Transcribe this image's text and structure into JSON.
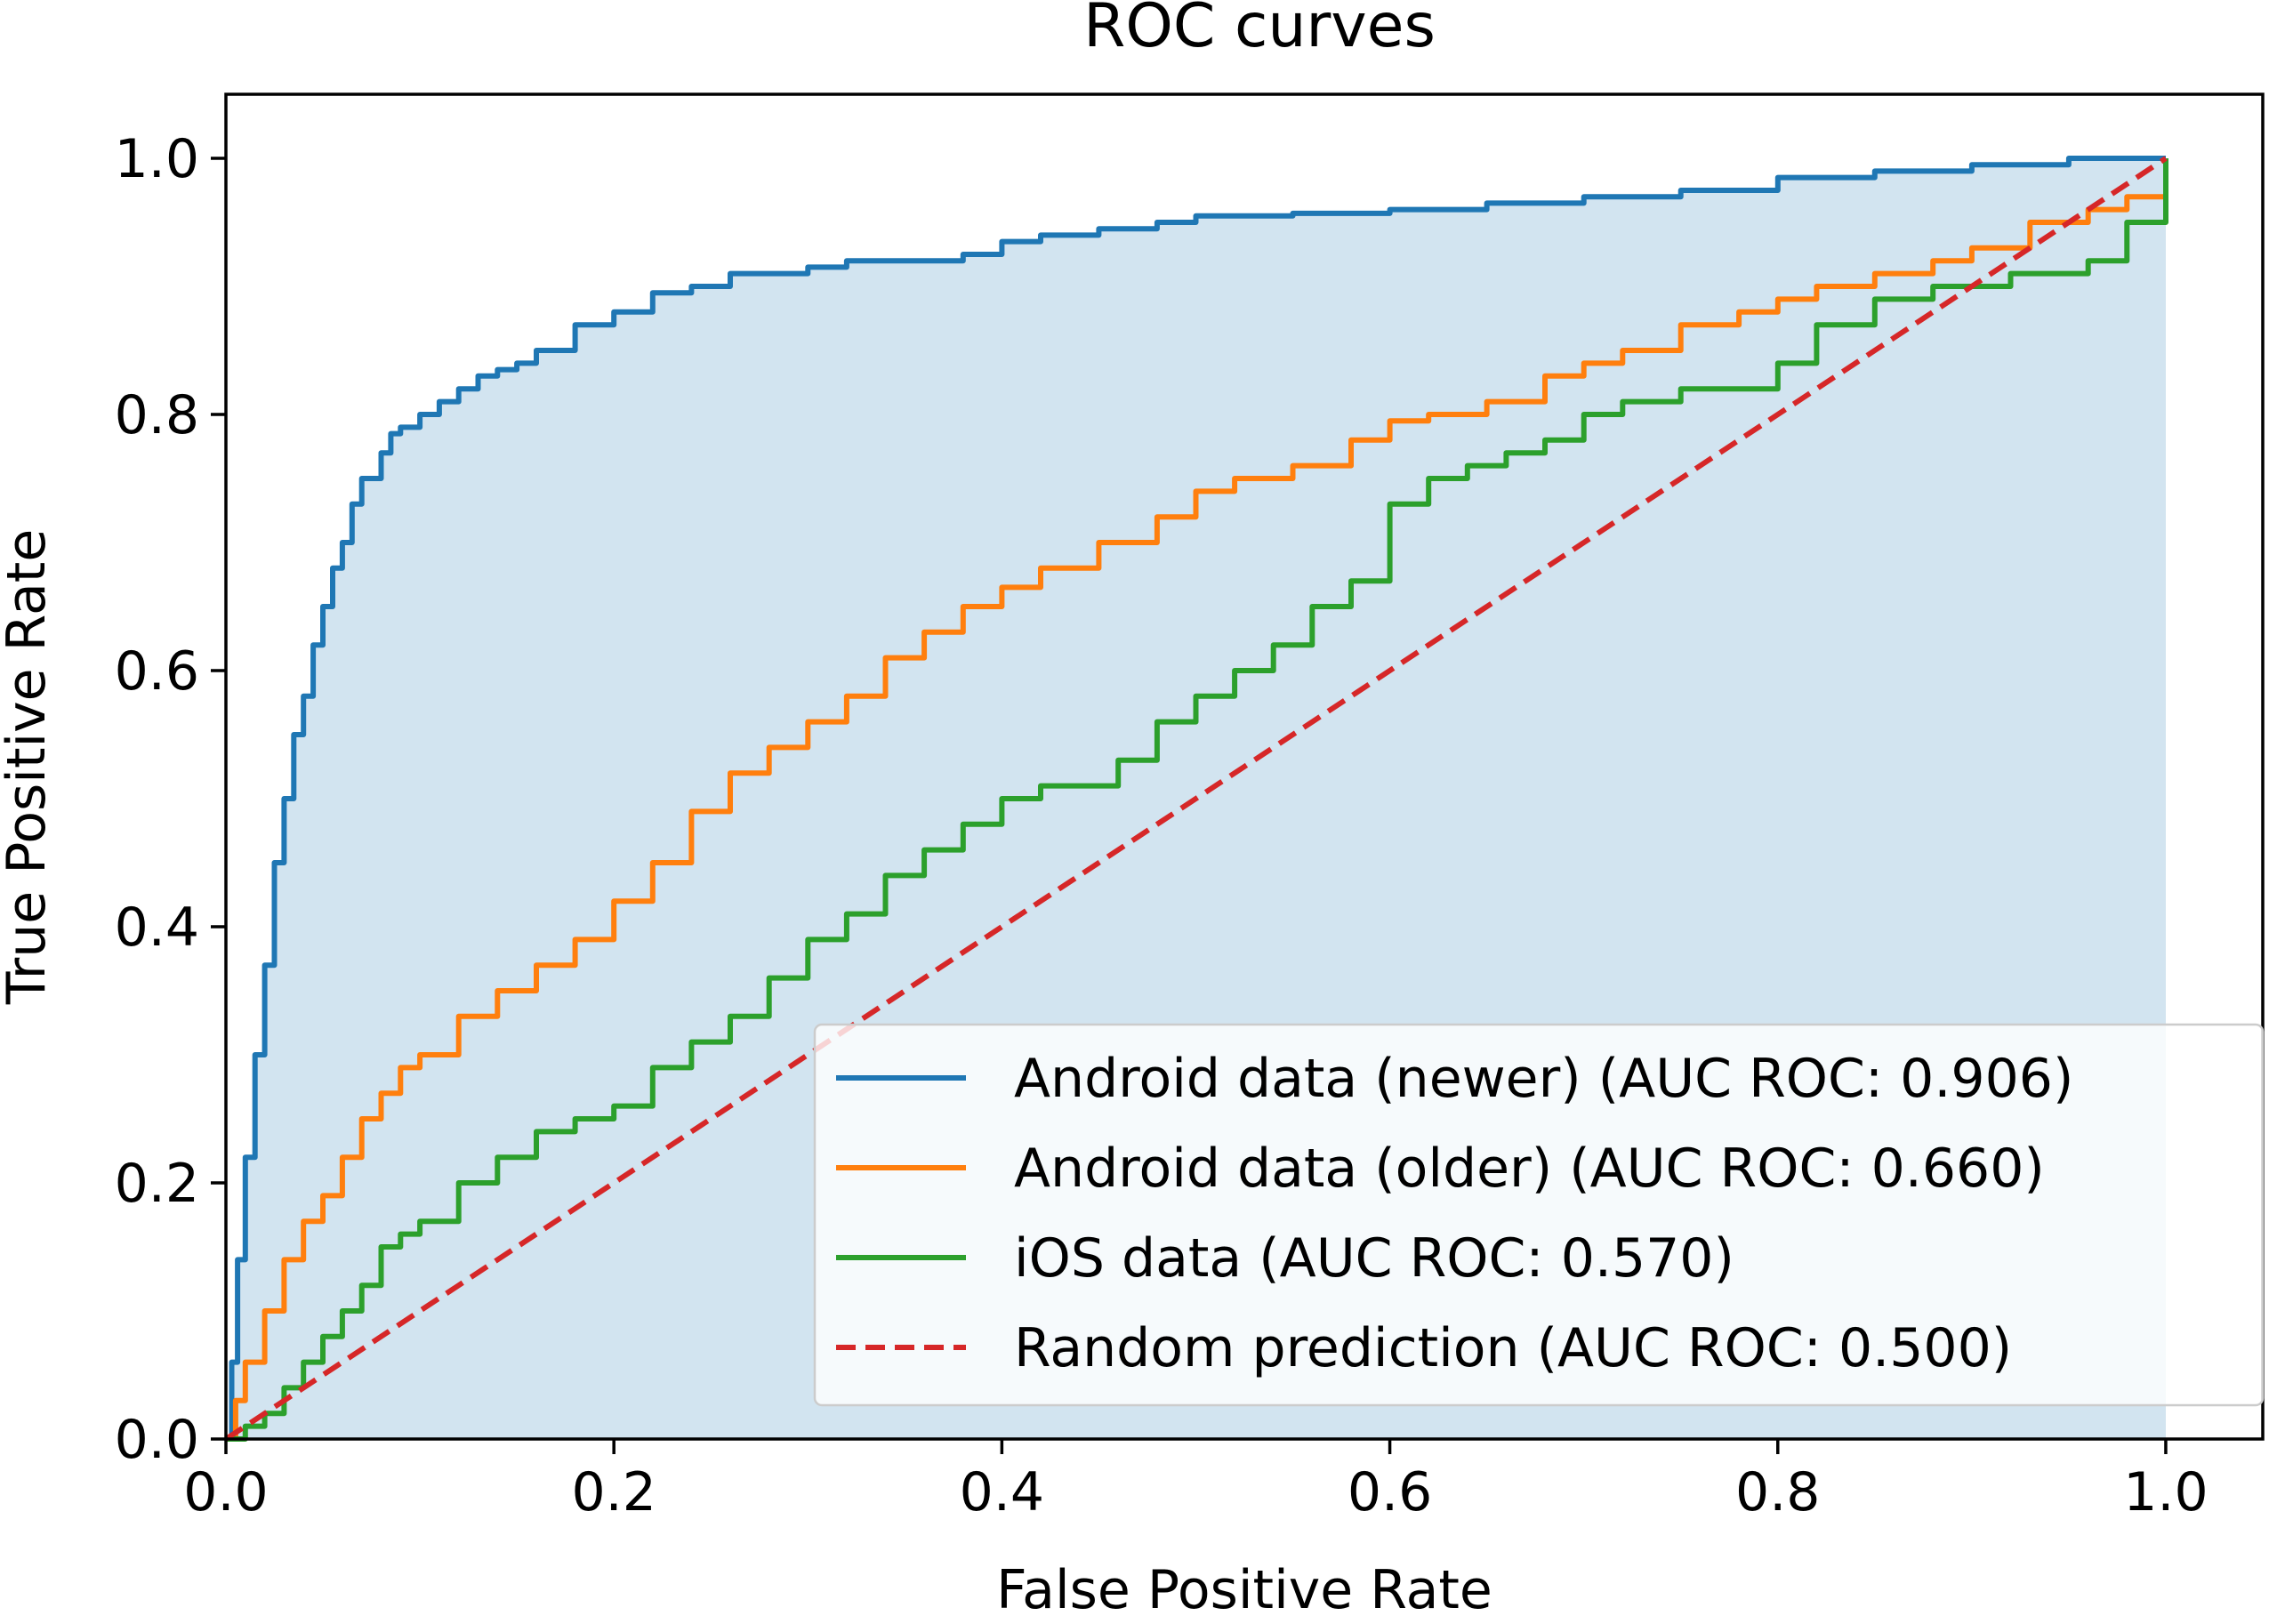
{
  "chart_data": {
    "type": "line",
    "title": "ROC curves",
    "xlabel": "False Positive Rate",
    "ylabel": "True Positive Rate",
    "xlim": [
      0.0,
      1.05
    ],
    "ylim": [
      0.0,
      1.05
    ],
    "xticks": [
      0.0,
      0.2,
      0.4,
      0.6,
      0.8,
      1.0
    ],
    "xtick_labels": [
      "0.0",
      "0.2",
      "0.4",
      "0.6",
      "0.8",
      "1.0"
    ],
    "yticks": [
      0.0,
      0.2,
      0.4,
      0.6,
      0.8,
      1.0
    ],
    "ytick_labels": [
      "0.0",
      "0.2",
      "0.4",
      "0.6",
      "0.8",
      "1.0"
    ],
    "grid": false,
    "legend_position": "lower-right",
    "shaded_area": {
      "under_series": "Android data (newer) (AUC ROC: 0.906)",
      "color": "#1f77b4",
      "opacity": 0.2,
      "x_extent": [
        0.0,
        1.0
      ]
    },
    "series": [
      {
        "name": "Android data (newer) (AUC ROC: 0.906)",
        "color": "#1f77b4",
        "style": "solid",
        "x": [
          0.0,
          0.003,
          0.006,
          0.01,
          0.015,
          0.02,
          0.025,
          0.03,
          0.035,
          0.04,
          0.045,
          0.05,
          0.055,
          0.06,
          0.065,
          0.07,
          0.075,
          0.08,
          0.085,
          0.09,
          0.1,
          0.11,
          0.12,
          0.13,
          0.14,
          0.15,
          0.16,
          0.18,
          0.2,
          0.22,
          0.24,
          0.26,
          0.28,
          0.3,
          0.32,
          0.35,
          0.38,
          0.4,
          0.42,
          0.45,
          0.48,
          0.5,
          0.55,
          0.6,
          0.65,
          0.7,
          0.75,
          0.8,
          0.85,
          0.9,
          0.95,
          0.98,
          1.0
        ],
        "y": [
          0.0,
          0.06,
          0.14,
          0.22,
          0.3,
          0.37,
          0.45,
          0.5,
          0.55,
          0.58,
          0.62,
          0.65,
          0.68,
          0.7,
          0.73,
          0.75,
          0.75,
          0.77,
          0.785,
          0.79,
          0.8,
          0.81,
          0.82,
          0.83,
          0.835,
          0.84,
          0.85,
          0.87,
          0.88,
          0.895,
          0.9,
          0.91,
          0.91,
          0.915,
          0.92,
          0.92,
          0.925,
          0.935,
          0.94,
          0.945,
          0.95,
          0.955,
          0.957,
          0.96,
          0.965,
          0.97,
          0.975,
          0.985,
          0.99,
          0.995,
          1.0,
          1.0,
          1.0
        ]
      },
      {
        "name": "Android data (older) (AUC ROC: 0.660)",
        "color": "#ff7f0e",
        "style": "solid",
        "x": [
          0.0,
          0.005,
          0.01,
          0.02,
          0.03,
          0.04,
          0.05,
          0.06,
          0.07,
          0.08,
          0.09,
          0.1,
          0.12,
          0.14,
          0.16,
          0.18,
          0.2,
          0.22,
          0.24,
          0.26,
          0.28,
          0.3,
          0.32,
          0.34,
          0.36,
          0.38,
          0.4,
          0.42,
          0.45,
          0.48,
          0.5,
          0.52,
          0.55,
          0.58,
          0.6,
          0.62,
          0.65,
          0.68,
          0.7,
          0.72,
          0.75,
          0.78,
          0.8,
          0.82,
          0.85,
          0.88,
          0.9,
          0.93,
          0.96,
          0.98,
          1.0
        ],
        "y": [
          0.0,
          0.03,
          0.06,
          0.1,
          0.14,
          0.17,
          0.19,
          0.22,
          0.25,
          0.27,
          0.29,
          0.3,
          0.33,
          0.35,
          0.37,
          0.39,
          0.42,
          0.45,
          0.49,
          0.52,
          0.54,
          0.56,
          0.58,
          0.61,
          0.63,
          0.65,
          0.665,
          0.68,
          0.7,
          0.72,
          0.74,
          0.75,
          0.76,
          0.78,
          0.795,
          0.8,
          0.81,
          0.83,
          0.84,
          0.85,
          0.87,
          0.88,
          0.89,
          0.9,
          0.91,
          0.92,
          0.93,
          0.95,
          0.96,
          0.97,
          1.0
        ]
      },
      {
        "name": "iOS data (AUC ROC: 0.570)",
        "color": "#2ca02c",
        "style": "solid",
        "x": [
          0.0,
          0.01,
          0.02,
          0.03,
          0.04,
          0.05,
          0.06,
          0.07,
          0.08,
          0.09,
          0.1,
          0.12,
          0.14,
          0.16,
          0.18,
          0.2,
          0.22,
          0.24,
          0.26,
          0.27,
          0.28,
          0.3,
          0.32,
          0.34,
          0.36,
          0.38,
          0.4,
          0.42,
          0.44,
          0.46,
          0.48,
          0.5,
          0.52,
          0.54,
          0.56,
          0.58,
          0.6,
          0.62,
          0.64,
          0.66,
          0.68,
          0.7,
          0.72,
          0.75,
          0.78,
          0.8,
          0.82,
          0.85,
          0.88,
          0.9,
          0.92,
          0.94,
          0.96,
          0.98,
          1.0
        ],
        "y": [
          0.0,
          0.01,
          0.02,
          0.04,
          0.06,
          0.08,
          0.1,
          0.12,
          0.15,
          0.16,
          0.17,
          0.2,
          0.22,
          0.24,
          0.25,
          0.26,
          0.29,
          0.31,
          0.33,
          0.33,
          0.36,
          0.39,
          0.41,
          0.44,
          0.46,
          0.48,
          0.5,
          0.51,
          0.51,
          0.53,
          0.56,
          0.58,
          0.6,
          0.62,
          0.65,
          0.67,
          0.73,
          0.75,
          0.76,
          0.77,
          0.78,
          0.8,
          0.81,
          0.82,
          0.82,
          0.84,
          0.87,
          0.89,
          0.9,
          0.9,
          0.91,
          0.91,
          0.92,
          0.95,
          1.0
        ]
      },
      {
        "name": "Random prediction (AUC ROC: 0.500)",
        "color": "#d62728",
        "style": "dashed",
        "x": [
          0.0,
          1.0
        ],
        "y": [
          0.0,
          1.0
        ]
      }
    ]
  }
}
